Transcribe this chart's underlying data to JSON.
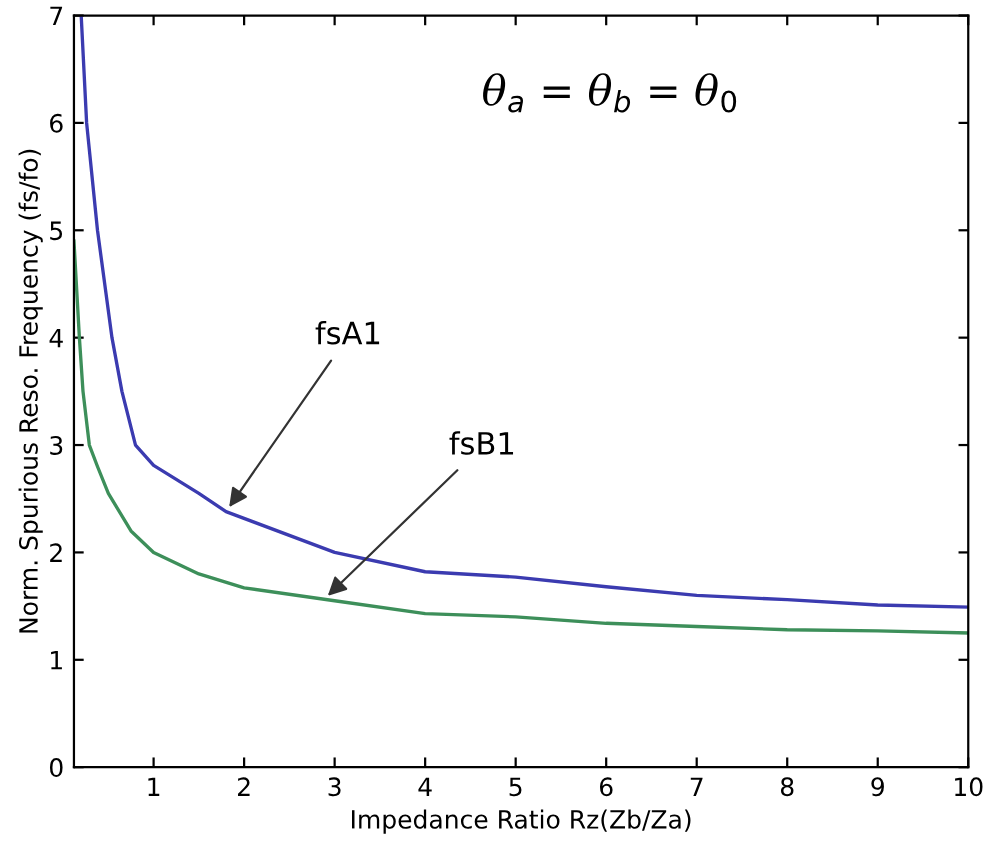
{
  "chart_data": {
    "type": "line",
    "xlabel": "Impedance Ratio Rz(Zb/Za)",
    "ylabel": "Norm. Spurious Reso. Frequency (fs/fo)",
    "xlim": [
      0.12,
      10
    ],
    "ylim": [
      0,
      7
    ],
    "xticks": [
      1,
      2,
      3,
      4,
      5,
      6,
      7,
      8,
      9,
      10
    ],
    "yticks": [
      0,
      1,
      2,
      3,
      4,
      5,
      6,
      7
    ],
    "grid": false,
    "marker": "none",
    "line_style": "solid",
    "series": [
      {
        "color": "#3b3bb0",
        "x": [
          0.2,
          0.26,
          0.38,
          0.54,
          0.65,
          0.8,
          1.0,
          1.5,
          1.8,
          3,
          4,
          5,
          6,
          7,
          8,
          9,
          10
        ],
        "values": [
          7.0,
          6.0,
          5.0,
          4.0,
          3.5,
          3.0,
          2.81,
          2.55,
          2.38,
          2.0,
          1.82,
          1.77,
          1.68,
          1.6,
          1.56,
          1.51,
          1.49
        ]
      },
      {
        "color": "#3d8f5a",
        "x": [
          0.12,
          0.18,
          0.22,
          0.29,
          0.38,
          0.5,
          0.75,
          1.0,
          1.5,
          2,
          3,
          4,
          5,
          6,
          7,
          8,
          9,
          10
        ],
        "values": [
          4.9,
          4.0,
          3.5,
          3.0,
          2.8,
          2.55,
          2.2,
          2.0,
          1.8,
          1.67,
          1.55,
          1.43,
          1.4,
          1.34,
          1.31,
          1.28,
          1.27,
          1.25
        ]
      }
    ],
    "annotations": [
      {
        "text": "fsA1",
        "x": 1.8,
        "y": 2.38
      },
      {
        "text": "fsB1",
        "x": 2.88,
        "y": 1.56
      },
      "θ$_{a}$ = θ$_{b}$ = θ$_{0}$"
    ]
  }
}
